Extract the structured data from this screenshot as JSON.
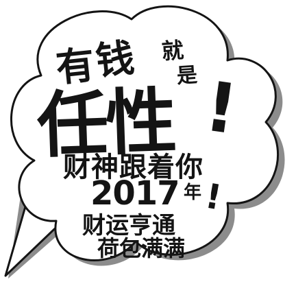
{
  "speech_bubble": {
    "fill_color": "#ffffff",
    "outline_color": "#141414",
    "shadow_color": "#8c8c8c"
  },
  "text": {
    "char_you": "有",
    "char_qian": "钱",
    "char_jiu": "就",
    "char_shi": "是",
    "renxing": "任性",
    "exclaim_1": "!",
    "line_caishen": "财神跟着你",
    "year_number": "2017",
    "year_char": "年",
    "exclaim_2": "!",
    "line_caiyun": "财运亨通",
    "line_hebao": "荷包满满"
  }
}
